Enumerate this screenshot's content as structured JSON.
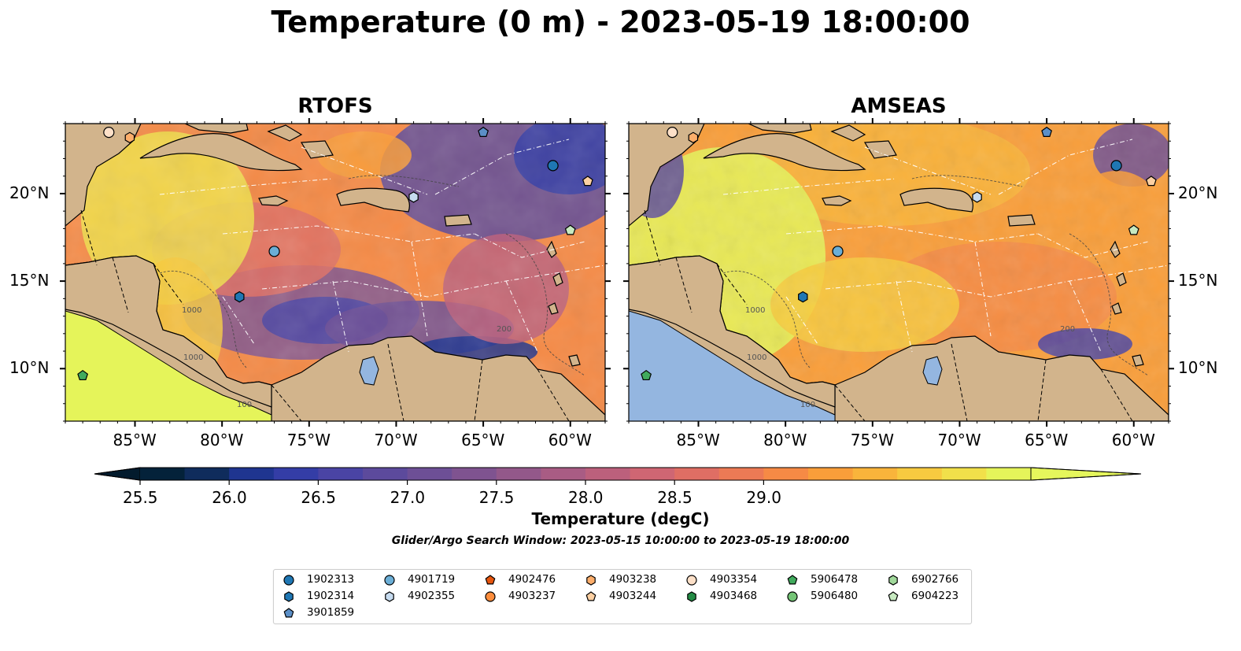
{
  "title": "Temperature (0 m) - 2023-05-19 18:00:00",
  "panels": [
    {
      "id": "rtofs",
      "title": "RTOFS"
    },
    {
      "id": "amseas",
      "title": "AMSEAS"
    }
  ],
  "lon_labels": [
    "85°W",
    "80°W",
    "75°W",
    "70°W",
    "65°W",
    "60°W"
  ],
  "lat_labels": [
    "20°N",
    "15°N",
    "10°N"
  ],
  "contour_labels": [
    "1000",
    "100",
    "200"
  ],
  "colorbar": {
    "label": "Temperature (degC)",
    "ticks": [
      "25.5",
      "26.0",
      "26.5",
      "27.0",
      "27.5",
      "28.0",
      "28.5",
      "29.0"
    ],
    "colors": [
      "#04223a",
      "#0f2c5c",
      "#1f3590",
      "#343da6",
      "#4a44a4",
      "#5c4a9c",
      "#6d4f96",
      "#7f5390",
      "#93588a",
      "#a95c84",
      "#bc607c",
      "#cf6673",
      "#df6e64",
      "#ec7a55",
      "#f68a45",
      "#f99e3a",
      "#f9b43b",
      "#f7ca40",
      "#f1e04a",
      "#e5f45a"
    ],
    "under_color": "#031b2d",
    "over_color": "#e5f65c"
  },
  "search_window": "Glider/Argo Search Window: 2023-05-15 10:00:00 to 2023-05-19 18:00:00",
  "legend": [
    {
      "id": "1902313",
      "marker": "circle",
      "color": "#1f77b4"
    },
    {
      "id": "1902314",
      "marker": "hexagon",
      "color": "#1f77b4"
    },
    {
      "id": "3901859",
      "marker": "pentagon",
      "color": "#5b8fc7"
    },
    {
      "id": "4901719",
      "marker": "circle",
      "color": "#6baed6"
    },
    {
      "id": "4902355",
      "marker": "hexagon",
      "color": "#c6dbef"
    },
    {
      "id": "4902476",
      "marker": "pentagon",
      "color": "#e6550d"
    },
    {
      "id": "4903237",
      "marker": "circle",
      "color": "#fd8d3c"
    },
    {
      "id": "4903238",
      "marker": "hexagon",
      "color": "#fdae6b"
    },
    {
      "id": "4903244",
      "marker": "pentagon",
      "color": "#fdd0a2"
    },
    {
      "id": "4903354",
      "marker": "circle",
      "color": "#fde0c8"
    },
    {
      "id": "4903468",
      "marker": "hexagon",
      "color": "#238b45"
    },
    {
      "id": "5906478",
      "marker": "pentagon",
      "color": "#41ab5d"
    },
    {
      "id": "5906480",
      "marker": "circle",
      "color": "#74c476"
    },
    {
      "id": "6902766",
      "marker": "hexagon",
      "color": "#a1d99b"
    },
    {
      "id": "6904223",
      "marker": "pentagon",
      "color": "#c7e9c0"
    }
  ],
  "map_extent": {
    "lon": [
      -89,
      -58
    ],
    "lat": [
      7,
      24
    ]
  },
  "land_color": "#d2b48c",
  "markers": [
    {
      "id": "4903354",
      "lon": -86.5,
      "lat": 23.5
    },
    {
      "id": "4903238",
      "lon": -85.3,
      "lat": 23.2
    },
    {
      "id": "3901859",
      "lon": -65.0,
      "lat": 23.5
    },
    {
      "id": "1902313",
      "lon": -61.0,
      "lat": 21.6
    },
    {
      "id": "4903244",
      "lon": -59.0,
      "lat": 20.7
    },
    {
      "id": "4902355",
      "lon": -69.0,
      "lat": 19.8
    },
    {
      "id": "6904223",
      "lon": -60.0,
      "lat": 17.9
    },
    {
      "id": "4901719",
      "lon": -77.0,
      "lat": 16.7
    },
    {
      "id": "1902314",
      "lon": -79.0,
      "lat": 14.1
    },
    {
      "id": "5906478",
      "lon": -88.0,
      "lat": 9.6
    }
  ]
}
